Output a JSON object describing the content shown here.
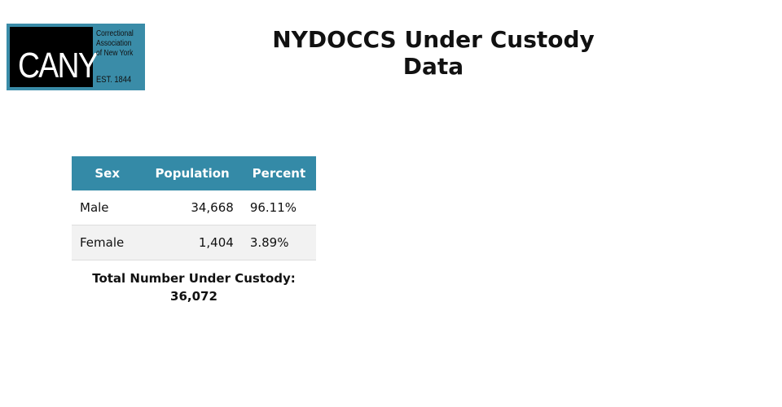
{
  "logo": {
    "mark": "CANY",
    "name_lines": [
      "Correctional",
      "Association",
      "of New York"
    ],
    "established": "EST. 1844"
  },
  "header": {
    "title": "NYDOCCS Under Custody Data"
  },
  "table": {
    "columns": [
      "Sex",
      "Population",
      "Percent"
    ],
    "rows": [
      [
        "Male",
        "34,668",
        "96.11%"
      ],
      [
        "Female",
        "1,404",
        "3.89%"
      ]
    ]
  },
  "footer": {
    "label": "Total Number Under Custody:",
    "total": "36,072"
  }
}
